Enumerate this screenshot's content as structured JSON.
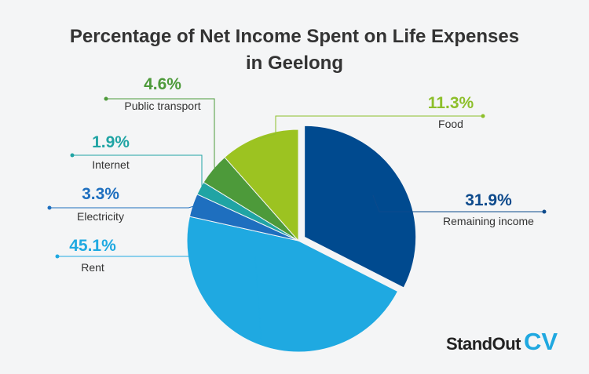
{
  "chart_data": {
    "type": "pie",
    "title_lines": [
      "Percentage of Net Income Spent on Life Expenses",
      "in Geelong"
    ],
    "slices": [
      {
        "name": "Remaining income",
        "value": 31.9,
        "label": "31.9%",
        "color": "#004a8f",
        "exploded": true
      },
      {
        "name": "Rent",
        "value": 45.1,
        "label": "45.1%",
        "color": "#1fa9e1",
        "exploded": false
      },
      {
        "name": "Electricity",
        "value": 3.3,
        "label": "3.3%",
        "color": "#1e6fbf",
        "exploded": false
      },
      {
        "name": "Internet",
        "value": 1.9,
        "label": "1.9%",
        "color": "#20a4a4",
        "exploded": false
      },
      {
        "name": "Public transport",
        "value": 4.6,
        "label": "4.6%",
        "color": "#4d9a3a",
        "exploded": false
      },
      {
        "name": "Food",
        "value": 11.3,
        "label": "11.3%",
        "color": "#9cc321",
        "exploded": false
      }
    ],
    "label_colors": {
      "Remaining income": "#0d4a8c",
      "Rent": "#1fa9e1",
      "Electricity": "#1e6fbf",
      "Internet": "#20a4a4",
      "Public transport": "#4d9a3a",
      "Food": "#8dbf2a"
    }
  },
  "brand": {
    "word": "StandOut",
    "mark": "CV"
  }
}
